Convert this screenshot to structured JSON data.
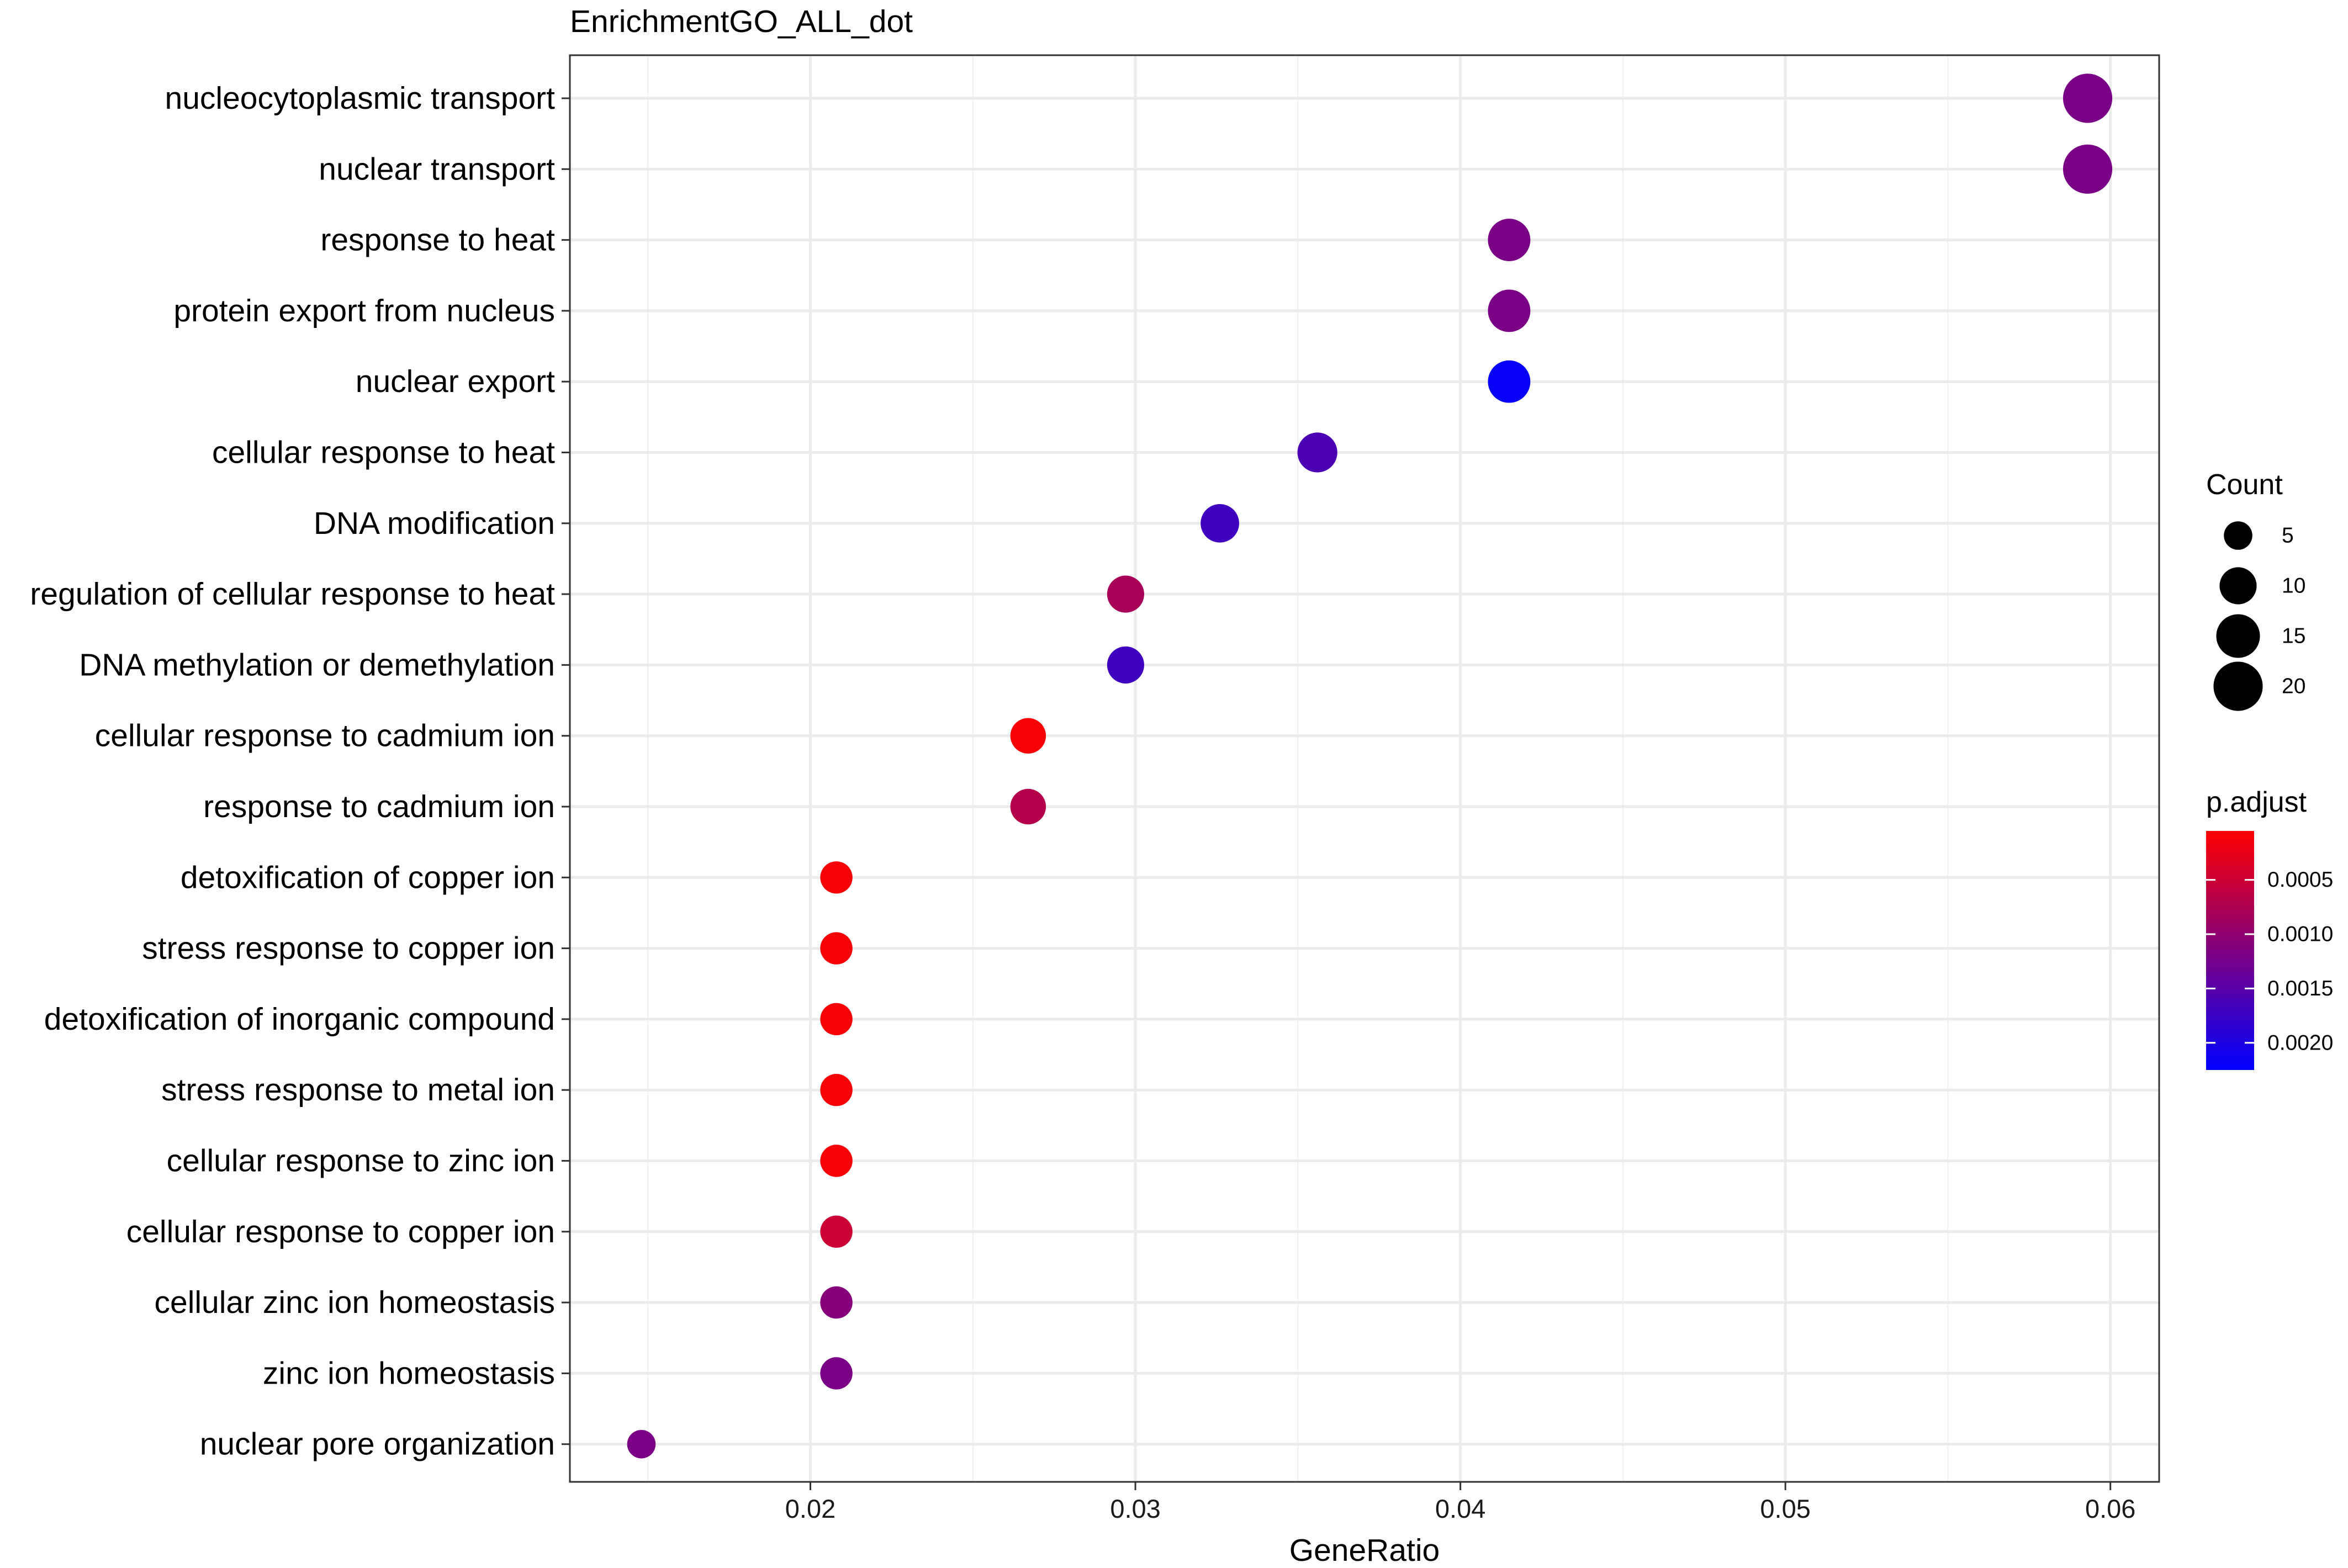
{
  "chart_data": {
    "type": "scatter",
    "title": "EnrichmentGO_ALL_dot",
    "xlabel": "GeneRatio",
    "ylabel": "",
    "xlim": [
      0.0126,
      0.0615
    ],
    "x_ticks": [
      0.02,
      0.03,
      0.04,
      0.05,
      0.06
    ],
    "x_tick_labels": [
      "0.02",
      "0.03",
      "0.04",
      "0.05",
      "0.06"
    ],
    "grid": true,
    "categories": [
      "nucleocytoplasmic transport",
      "nuclear transport",
      "response to heat",
      "protein export from nucleus",
      "nuclear export",
      "cellular response to heat",
      "DNA modification",
      "regulation of cellular response to heat",
      "DNA methylation or demethylation",
      "cellular response to cadmium ion",
      "response to cadmium ion",
      "detoxification of copper ion",
      "stress response to copper ion",
      "detoxification of inorganic compound",
      "stress response to metal ion",
      "cellular response to zinc ion",
      "cellular response to copper ion",
      "cellular zinc ion homeostasis",
      "zinc ion homeostasis",
      "nuclear pore organization"
    ],
    "gene_ratio": [
      0.0593,
      0.0593,
      0.0415,
      0.0415,
      0.0415,
      0.0356,
      0.0326,
      0.0297,
      0.0297,
      0.0267,
      0.0267,
      0.0208,
      0.0208,
      0.0208,
      0.0208,
      0.0208,
      0.0208,
      0.0208,
      0.0208,
      0.0148
    ],
    "count": [
      20,
      20,
      14,
      14,
      14,
      12,
      11,
      10,
      10,
      9,
      9,
      7,
      7,
      7,
      7,
      7,
      7,
      7,
      7,
      5
    ],
    "p_adjust": [
      0.0012,
      0.0012,
      0.0012,
      0.0012,
      0.0022,
      0.0016,
      0.0017,
      0.0008,
      0.0017,
      0.0001,
      0.0007,
      0.0001,
      0.0001,
      0.0001,
      0.0001,
      0.0001,
      0.0005,
      0.0011,
      0.0012,
      0.0012
    ],
    "legend": {
      "position": "right",
      "size_title": "Count",
      "size_values": [
        5,
        10,
        15,
        20
      ],
      "size_labels": [
        "5",
        "10",
        "15",
        "20"
      ],
      "color_title": "p.adjust",
      "color_min": 5e-05,
      "color_max": 0.00225,
      "color_ticks": [
        0.0005,
        0.001,
        0.0015,
        0.002
      ],
      "color_tick_labels": [
        "0.0005",
        "0.0010",
        "0.0015",
        "0.0020"
      ],
      "low_color": "#ff0000",
      "high_color": "#0000ff"
    }
  },
  "colors": {
    "panel_background": "#ffffff",
    "grid_major": "#ebebeb",
    "grid_minor": "#f2f2f2",
    "panel_border": "#333333"
  }
}
